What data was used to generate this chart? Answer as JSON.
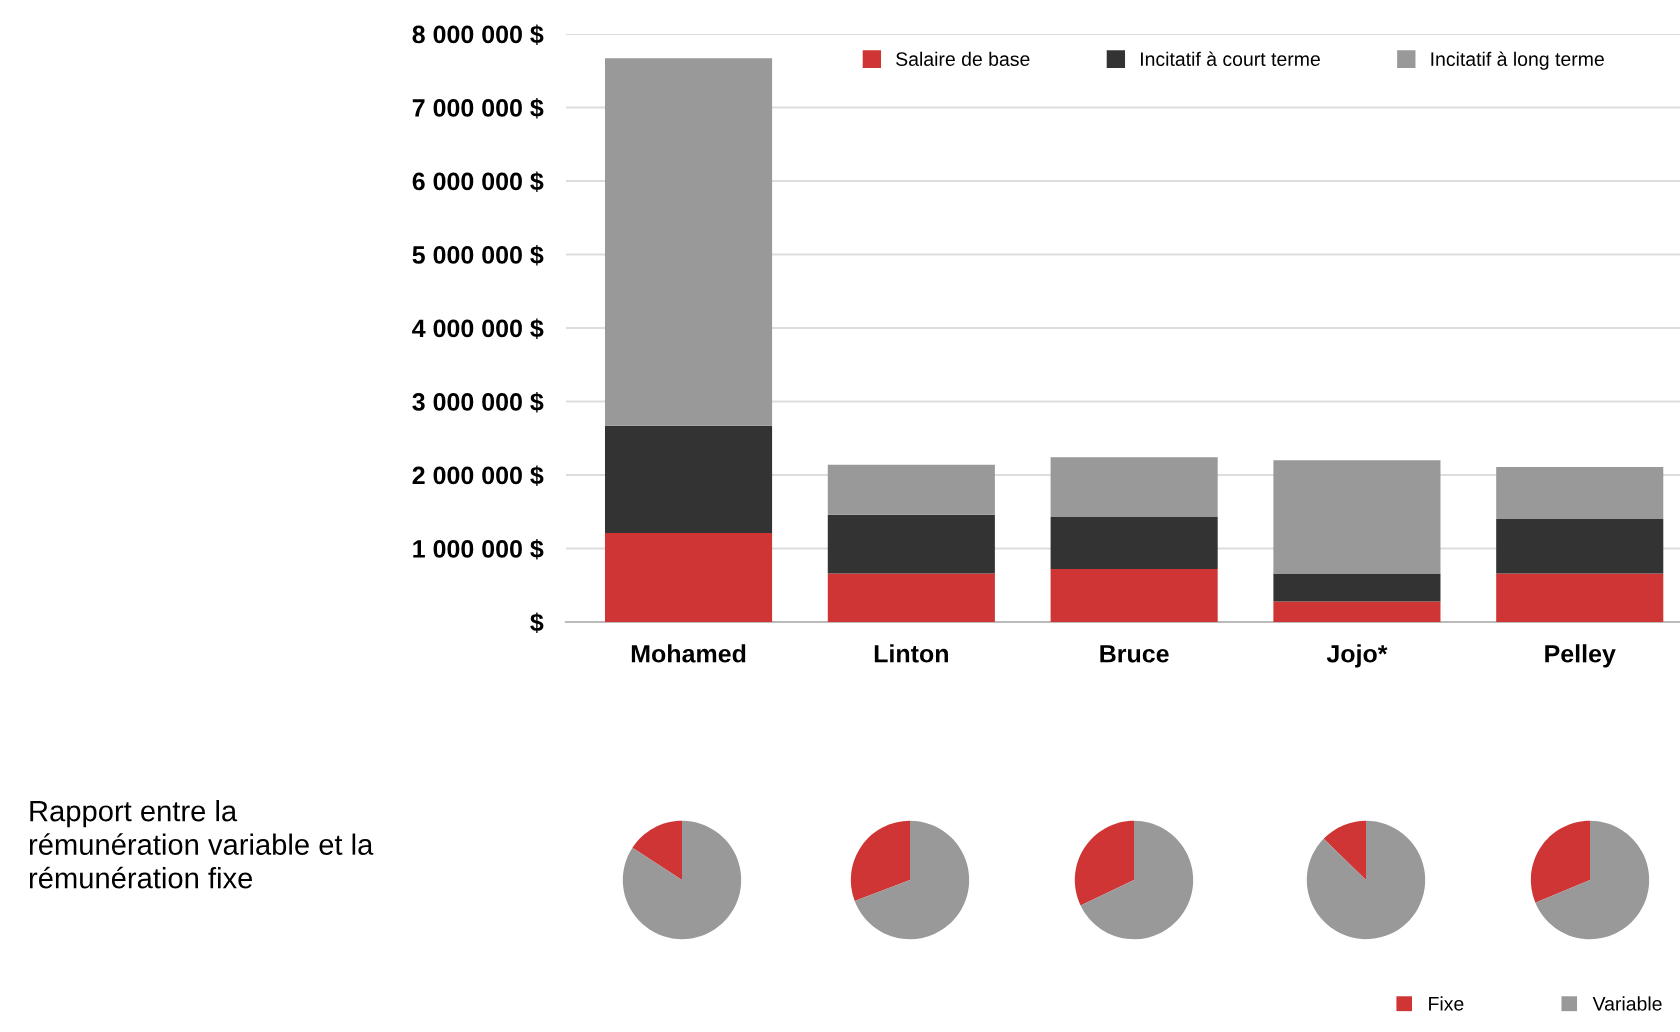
{
  "chart_data": [
    {
      "type": "bar",
      "stacked": true,
      "categories": [
        "Mohamed",
        "Linton",
        "Bruce",
        "Jojo*",
        "Pelley"
      ],
      "series": [
        {
          "name": "Salaire de base",
          "color": "#d03535",
          "values": [
            1210000,
            660000,
            720000,
            280000,
            660000
          ]
        },
        {
          "name": "Incitatif à court terme",
          "color": "#333333",
          "values": [
            1460000,
            800000,
            710000,
            380000,
            740000
          ]
        },
        {
          "name": "Incitatif à long terme",
          "color": "#999999",
          "values": [
            5000000,
            680000,
            810000,
            1540000,
            710000
          ]
        }
      ],
      "ylim": [
        0,
        8000000
      ],
      "yticks": [
        {
          "value": 0,
          "label": "$"
        },
        {
          "value": 1000000,
          "label": "1 000 000 $"
        },
        {
          "value": 2000000,
          "label": "2 000 000 $"
        },
        {
          "value": 3000000,
          "label": "3 000 000 $"
        },
        {
          "value": 4000000,
          "label": "4 000 000 $"
        },
        {
          "value": 5000000,
          "label": "5 000 000 $"
        },
        {
          "value": 6000000,
          "label": "6 000 000 $"
        },
        {
          "value": 7000000,
          "label": "7 000 000 $"
        },
        {
          "value": 8000000,
          "label": "8 000 000 $"
        }
      ],
      "grid": "y",
      "legend": "top"
    },
    {
      "type": "pie",
      "categories": [
        "Fixe",
        "Variable"
      ],
      "values": [
        15.8,
        84.2
      ],
      "colors": [
        "#d03535",
        "#999999"
      ],
      "legend": "bottom right",
      "annotations": [
        "Rapport entre la\nrémunération variable et la\nrémunération fixe"
      ]
    },
    {
      "type": "pie",
      "categories": [
        null,
        null
      ],
      "values": [
        30.8,
        69.2
      ],
      "colors": [
        "#d03535",
        "#999999"
      ]
    },
    {
      "type": "pie",
      "categories": [
        null,
        null
      ],
      "values": [
        32.1,
        67.9
      ],
      "colors": [
        "#d03535",
        "#999999"
      ]
    },
    {
      "type": "pie",
      "categories": [
        null,
        null
      ],
      "values": [
        12.7,
        87.3
      ],
      "colors": [
        "#d03535",
        "#999999"
      ]
    },
    {
      "type": "pie",
      "categories": [
        null,
        null
      ],
      "values": [
        31.3,
        68.7
      ],
      "colors": [
        "#d03535",
        "#999999"
      ]
    }
  ]
}
